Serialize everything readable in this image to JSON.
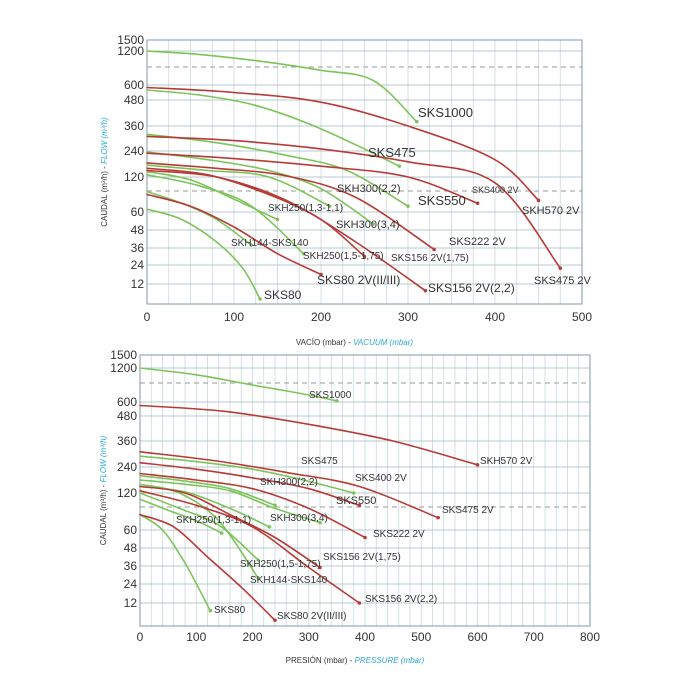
{
  "chart_data": [
    {
      "type": "line",
      "name": "vacuum",
      "xlabel_es": "VACÍO (mbar) - ",
      "xlabel_en": "VACUUM (mbar)",
      "ylabel_es": "CAUDAL (m³/h) - ",
      "ylabel_en": "FLOW (m³/h)",
      "xlim": [
        0,
        500
      ],
      "x_ticks": [
        0,
        100,
        200,
        300,
        400,
        500
      ],
      "y_ticks": [
        1500,
        1200,
        600,
        480,
        360,
        240,
        120,
        60,
        48,
        36,
        24,
        12
      ],
      "dashed_lines": [
        900,
        90
      ],
      "series": [
        {
          "name": "SKS1000",
          "color": "#7cc45a",
          "x": [
            0,
            60,
            130,
            200,
            260,
            310
          ],
          "values": [
            1200,
            1140,
            1020,
            860,
            680,
            380
          ]
        },
        {
          "name": "SKS475",
          "color": "#7cc45a",
          "x": [
            0,
            60,
            120,
            180,
            240,
            290
          ],
          "values": [
            560,
            520,
            460,
            380,
            270,
            170
          ]
        },
        {
          "name": "SKS550",
          "color": "#7cc45a",
          "x": [
            0,
            80,
            160,
            230,
            300
          ],
          "values": [
            320,
            280,
            220,
            150,
            70
          ]
        },
        {
          "name": "SKH300(2,2)",
          "color": "#7cc45a",
          "x": [
            0,
            70,
            140,
            210
          ],
          "values": [
            175,
            150,
            120,
            70
          ]
        },
        {
          "name": "SKH300(3,4)",
          "color": "#7cc45a",
          "x": [
            0,
            70,
            140,
            200,
            260
          ],
          "values": [
            235,
            200,
            150,
            100,
            52
          ]
        },
        {
          "name": "SKH250(1,3-1,1)",
          "color": "#7cc45a",
          "x": [
            0,
            50,
            100,
            150
          ],
          "values": [
            145,
            115,
            82,
            55
          ]
        },
        {
          "name": "SKH250(1,5-1,75)",
          "color": "#7cc45a",
          "x": [
            0,
            60,
            120,
            180
          ],
          "values": [
            130,
            105,
            70,
            32
          ]
        },
        {
          "name": "SKH144-SKS140",
          "color": "#7cc45a",
          "x": [
            0,
            40,
            80,
            120
          ],
          "values": [
            95,
            75,
            55,
            38
          ]
        },
        {
          "name": "SKS80",
          "color": "#7cc45a",
          "x": [
            0,
            40,
            80,
            110,
            130
          ],
          "values": [
            65,
            55,
            40,
            22,
            3
          ]
        },
        {
          "name": "SKH570 2V",
          "color": "#b83a36",
          "x": [
            0,
            100,
            200,
            300,
            400,
            450
          ],
          "values": [
            580,
            540,
            470,
            360,
            200,
            80
          ]
        },
        {
          "name": "SKS475 2V",
          "color": "#b83a36",
          "x": [
            0,
            100,
            200,
            300,
            400,
            475
          ],
          "values": [
            310,
            290,
            250,
            190,
            110,
            22
          ]
        },
        {
          "name": "SKS400 2V",
          "color": "#b83a36",
          "x": [
            0,
            100,
            200,
            300,
            380
          ],
          "values": [
            230,
            205,
            170,
            120,
            75
          ]
        },
        {
          "name": "SKS222 2V",
          "color": "#b83a36",
          "x": [
            0,
            80,
            160,
            240,
            330
          ],
          "values": [
            185,
            160,
            125,
            85,
            35
          ]
        },
        {
          "name": "SKS156 2V(1,75)",
          "color": "#b83a36",
          "x": [
            0,
            70,
            140,
            200,
            250
          ],
          "values": [
            160,
            130,
            90,
            55,
            30
          ]
        },
        {
          "name": "SKS156 2V(2,2)",
          "color": "#b83a36",
          "x": [
            0,
            80,
            160,
            240,
            320
          ],
          "values": [
            150,
            120,
            80,
            40,
            8
          ]
        },
        {
          "name": "SKS80 2V(II/III)",
          "color": "#b83a36",
          "x": [
            0,
            50,
            100,
            150,
            200
          ],
          "values": [
            90,
            70,
            50,
            32,
            18
          ]
        }
      ],
      "labels": [
        "SKS1000",
        "SKS475",
        "SKS550",
        "SKH300(2,2)",
        "SKH300(3,4)",
        "SKH250(1,3-1,1)",
        "SKH250(1,5-1,75)",
        "SKH144-SKS140",
        "SKS80",
        "SKH570 2V",
        "SKS475 2V",
        "SKS400 2V",
        "SKS222 2V",
        "SKS156 2V(1,75)",
        "SKS156 2V(2,2)",
        "SKS80 2V(II/III)"
      ]
    },
    {
      "type": "line",
      "name": "pressure",
      "xlabel_es": "PRESIÓN (mbar) - ",
      "xlabel_en": "PRESSURE (mbar)",
      "ylabel_es": "CAUDAL (m³/h) - ",
      "ylabel_en": "FLOW (m³/h)",
      "xlim": [
        0,
        800
      ],
      "x_ticks": [
        0,
        100,
        200,
        300,
        400,
        500,
        600,
        700,
        800
      ],
      "y_ticks": [
        1500,
        1200,
        600,
        480,
        360,
        240,
        120,
        60,
        48,
        36,
        24,
        12
      ],
      "dashed_lines": [
        900,
        90
      ],
      "series": [
        {
          "name": "SKS1000",
          "color": "#7cc45a",
          "x": [
            0,
            100,
            200,
            280,
            350
          ],
          "values": [
            1200,
            1080,
            900,
            760,
            620
          ]
        },
        {
          "name": "SKS475",
          "color": "#7cc45a",
          "x": [
            0,
            100,
            200,
            290,
            380
          ],
          "values": [
            290,
            265,
            230,
            180,
            120
          ]
        },
        {
          "name": "SKS550",
          "color": "#7cc45a",
          "x": [
            0,
            80,
            160,
            240,
            320
          ],
          "values": [
            180,
            160,
            130,
            95,
            72
          ]
        },
        {
          "name": "SKH300(2,2)",
          "color": "#7cc45a",
          "x": [
            0,
            80,
            160,
            240
          ],
          "values": [
            200,
            175,
            140,
            100
          ]
        },
        {
          "name": "SKH300(3,4)",
          "color": "#7cc45a",
          "x": [
            0,
            80,
            160,
            230
          ],
          "values": [
            150,
            125,
            95,
            65
          ]
        },
        {
          "name": "SKH250(1,3-1,1)",
          "color": "#7cc45a",
          "x": [
            0,
            50,
            100,
            145
          ],
          "values": [
            110,
            92,
            75,
            58
          ]
        },
        {
          "name": "SKH250(1,5-1,75)",
          "color": "#7cc45a",
          "x": [
            0,
            70,
            140,
            210
          ],
          "values": [
            120,
            95,
            68,
            40
          ]
        },
        {
          "name": "SKH144-SKS140",
          "color": "#7cc45a",
          "x": [
            0,
            70,
            140,
            210
          ],
          "values": [
            160,
            120,
            75,
            28
          ]
        },
        {
          "name": "SKS80",
          "color": "#7cc45a",
          "x": [
            0,
            40,
            80,
            125
          ],
          "values": [
            85,
            60,
            38,
            8
          ]
        },
        {
          "name": "SKH570 2V",
          "color": "#b83a36",
          "x": [
            0,
            150,
            300,
            450,
            600
          ],
          "values": [
            570,
            520,
            440,
            360,
            250
          ]
        },
        {
          "name": "SKS475 2V",
          "color": "#b83a36",
          "x": [
            0,
            130,
            260,
            390,
            530
          ],
          "values": [
            310,
            270,
            215,
            150,
            80
          ]
        },
        {
          "name": "SKS400 2V",
          "color": "#b83a36",
          "x": [
            0,
            100,
            200,
            300,
            390
          ],
          "values": [
            260,
            230,
            190,
            140,
            100
          ]
        },
        {
          "name": "SKS222 2V",
          "color": "#b83a36",
          "x": [
            0,
            100,
            200,
            300,
            400
          ],
          "values": [
            210,
            180,
            140,
            95,
            55
          ]
        },
        {
          "name": "SKS156 2V(1,75)",
          "color": "#b83a36",
          "x": [
            0,
            80,
            160,
            240,
            320
          ],
          "values": [
            150,
            120,
            85,
            55,
            35
          ]
        },
        {
          "name": "SKS156 2V(2,2)",
          "color": "#b83a36",
          "x": [
            0,
            100,
            200,
            300,
            390
          ],
          "values": [
            130,
            100,
            65,
            35,
            12
          ]
        },
        {
          "name": "SKS80 2V(II/III)",
          "color": "#b83a36",
          "x": [
            0,
            60,
            120,
            180,
            240
          ],
          "values": [
            85,
            65,
            42,
            22,
            3
          ]
        }
      ],
      "labels": [
        "SKS1000",
        "SKS475",
        "SKS550",
        "SKH300(2,2)",
        "SKH300(3,4)",
        "SKH250(1,3-1,1)",
        "SKH250(1,5-1,75)",
        "SKH144-SKS140",
        "SKS80",
        "SKH570 2V",
        "SKS475 2V",
        "SKS400 2V",
        "SKS222 2V",
        "SKS156 2V(1,75)",
        "SKS156 2V(2,2)",
        "SKS80 2V(II/III)"
      ]
    }
  ]
}
